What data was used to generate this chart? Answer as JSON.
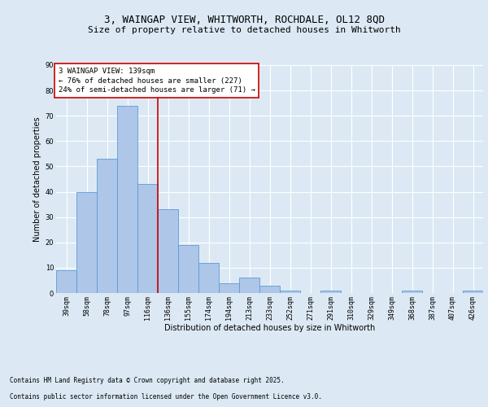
{
  "title_line1": "3, WAINGAP VIEW, WHITWORTH, ROCHDALE, OL12 8QD",
  "title_line2": "Size of property relative to detached houses in Whitworth",
  "xlabel": "Distribution of detached houses by size in Whitworth",
  "ylabel": "Number of detached properties",
  "categories": [
    "39sqm",
    "58sqm",
    "78sqm",
    "97sqm",
    "116sqm",
    "136sqm",
    "155sqm",
    "174sqm",
    "194sqm",
    "213sqm",
    "233sqm",
    "252sqm",
    "271sqm",
    "291sqm",
    "310sqm",
    "329sqm",
    "349sqm",
    "368sqm",
    "387sqm",
    "407sqm",
    "426sqm"
  ],
  "values": [
    9,
    40,
    53,
    74,
    43,
    33,
    19,
    12,
    4,
    6,
    3,
    1,
    0,
    1,
    0,
    0,
    0,
    1,
    0,
    0,
    1
  ],
  "bar_color": "#aec6e8",
  "bar_edge_color": "#5b9bd5",
  "vline_x_index": 5,
  "vline_color": "#cc0000",
  "ylim": [
    0,
    90
  ],
  "yticks": [
    0,
    10,
    20,
    30,
    40,
    50,
    60,
    70,
    80,
    90
  ],
  "annotation_text": "3 WAINGAP VIEW: 139sqm\n← 76% of detached houses are smaller (227)\n24% of semi-detached houses are larger (71) →",
  "annotation_box_color": "#ffffff",
  "annotation_box_edge": "#cc0000",
  "background_color": "#dce9f5",
  "plot_bg_color": "#dce9f5",
  "footer_line1": "Contains HM Land Registry data © Crown copyright and database right 2025.",
  "footer_line2": "Contains public sector information licensed under the Open Government Licence v3.0.",
  "title_fontsize": 9,
  "subtitle_fontsize": 8,
  "axis_label_fontsize": 7,
  "tick_fontsize": 6,
  "annotation_fontsize": 6.5,
  "footer_fontsize": 5.5
}
